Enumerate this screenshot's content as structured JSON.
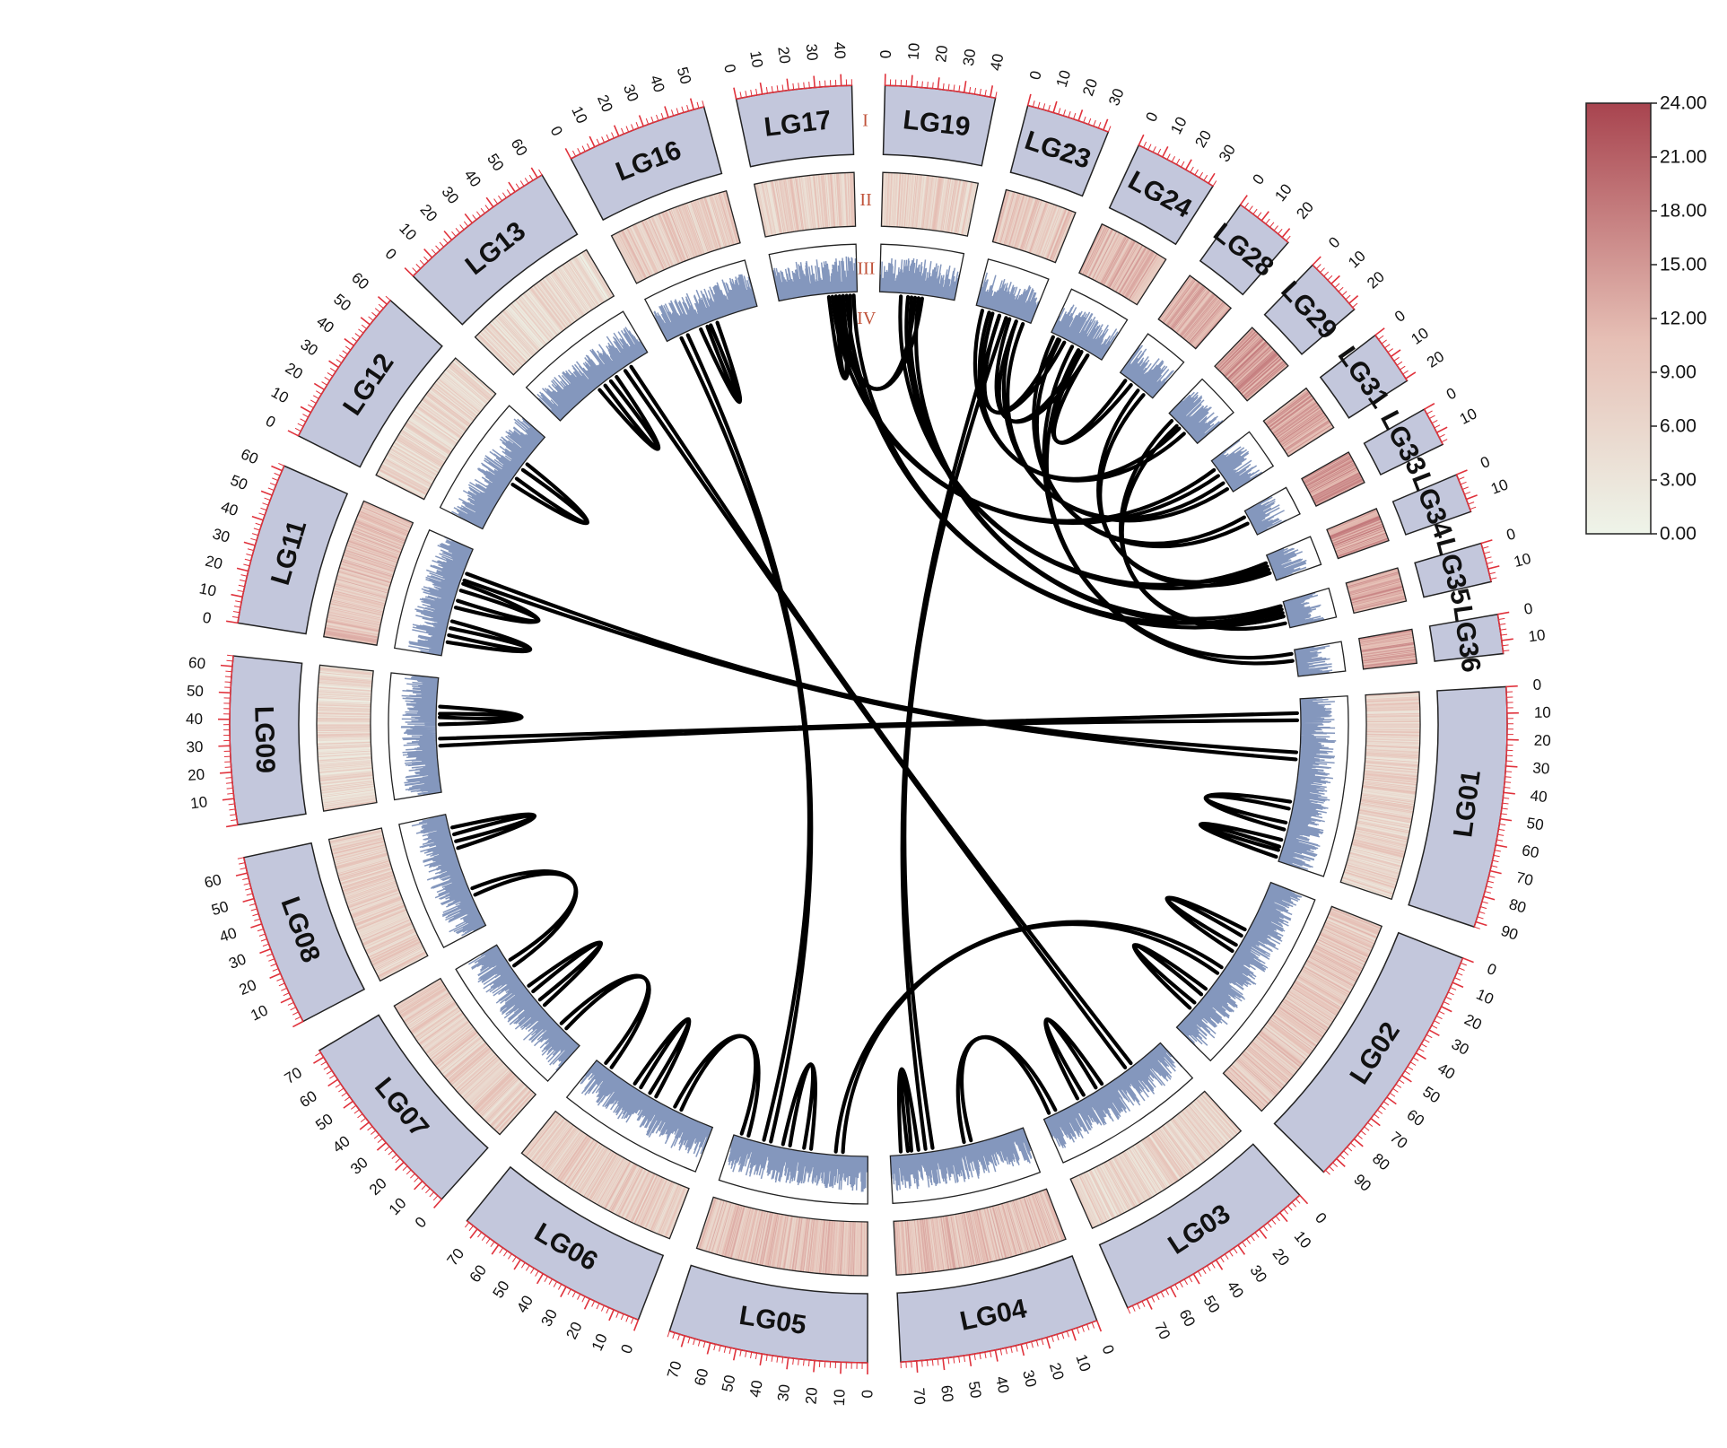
{
  "chart_data": {
    "type": "circos",
    "track_labels": [
      "I",
      "II",
      "III",
      "IV"
    ],
    "track_label_color": "#c0533a",
    "ideogram_color": "#c3c7dc",
    "tick_color": "#e0323c",
    "bar_color": "#8497bd",
    "chromosomes": [
      {
        "name": "LG01",
        "length": 92,
        "ticks": [
          0,
          10,
          20,
          30,
          40,
          50,
          60,
          70,
          80,
          90
        ],
        "mean_heat": 0.28
      },
      {
        "name": "LG02",
        "length": 97,
        "ticks": [
          0,
          10,
          20,
          30,
          40,
          50,
          60,
          70,
          80,
          90
        ],
        "mean_heat": 0.35
      },
      {
        "name": "LG03",
        "length": 78,
        "ticks": [
          0,
          10,
          20,
          30,
          40,
          50,
          60,
          70
        ],
        "mean_heat": 0.25
      },
      {
        "name": "LG04",
        "length": 76,
        "ticks": [
          0,
          10,
          20,
          30,
          40,
          50,
          60,
          70
        ],
        "mean_heat": 0.4
      },
      {
        "name": "LG05",
        "length": 76,
        "ticks": [
          0,
          10,
          20,
          30,
          40,
          50,
          60,
          70
        ],
        "mean_heat": 0.4
      },
      {
        "name": "LG06",
        "length": 75,
        "ticks": [
          0,
          10,
          20,
          30,
          40,
          50,
          60,
          70
        ],
        "mean_heat": 0.32
      },
      {
        "name": "LG07",
        "length": 73,
        "ticks": [
          0,
          10,
          20,
          30,
          40,
          50,
          60,
          70
        ],
        "mean_heat": 0.3
      },
      {
        "name": "LG08",
        "length": 66,
        "ticks": [
          10,
          20,
          30,
          40,
          50,
          60
        ],
        "mean_heat": 0.3
      },
      {
        "name": "LG09",
        "length": 64,
        "ticks": [
          10,
          20,
          30,
          40,
          50,
          60
        ],
        "mean_heat": 0.22
      },
      {
        "name": "LG11",
        "length": 62,
        "ticks": [
          0,
          10,
          20,
          30,
          40,
          50,
          60
        ],
        "mean_heat": 0.38
      },
      {
        "name": "LG12",
        "length": 62,
        "ticks": [
          0,
          10,
          20,
          30,
          40,
          50,
          60
        ],
        "mean_heat": 0.25
      },
      {
        "name": "LG13",
        "length": 62,
        "ticks": [
          0,
          10,
          20,
          30,
          40,
          50,
          60
        ],
        "mean_heat": 0.2
      },
      {
        "name": "LG16",
        "length": 54,
        "ticks": [
          0,
          10,
          20,
          30,
          40,
          50
        ],
        "mean_heat": 0.32
      },
      {
        "name": "LG17",
        "length": 44,
        "ticks": [
          0,
          10,
          20,
          30,
          40
        ],
        "mean_heat": 0.3
      },
      {
        "name": "LG19",
        "length": 42,
        "ticks": [
          0,
          10,
          20,
          30,
          40
        ],
        "mean_heat": 0.3
      },
      {
        "name": "LG23",
        "length": 32,
        "ticks": [
          0,
          10,
          20,
          30
        ],
        "mean_heat": 0.35
      },
      {
        "name": "LG24",
        "length": 32,
        "ticks": [
          0,
          10,
          20,
          30
        ],
        "mean_heat": 0.45
      },
      {
        "name": "LG28",
        "length": 23,
        "ticks": [
          0,
          10,
          20
        ],
        "mean_heat": 0.5
      },
      {
        "name": "LG29",
        "length": 23,
        "ticks": [
          0,
          10,
          20
        ],
        "mean_heat": 0.6
      },
      {
        "name": "LG31",
        "length": 21,
        "ticks": [
          0,
          10,
          20
        ],
        "mean_heat": 0.55
      },
      {
        "name": "LG33",
        "length": 15,
        "ticks": [
          0,
          10
        ],
        "mean_heat": 0.6
      },
      {
        "name": "LG34",
        "length": 15,
        "ticks": [
          0,
          10
        ],
        "mean_heat": 0.6
      },
      {
        "name": "LG35",
        "length": 15,
        "ticks": [
          0,
          10
        ],
        "mean_heat": 0.55
      },
      {
        "name": "LG36",
        "length": 15,
        "ticks": [
          0,
          10
        ],
        "mean_heat": 0.55
      }
    ],
    "links": [
      {
        "a": [
          "LG17",
          32,
          36
        ],
        "b": [
          "LG19",
          20,
          24
        ]
      },
      {
        "a": [
          "LG17",
          28,
          32
        ],
        "b": [
          "LG17",
          36,
          40
        ]
      },
      {
        "a": [
          "LG17",
          38,
          42
        ],
        "b": [
          "LG35",
          4,
          8
        ]
      },
      {
        "a": [
          "LG17",
          30,
          34
        ],
        "b": [
          "LG31",
          5,
          9
        ]
      },
      {
        "a": [
          "LG19",
          18,
          22
        ],
        "b": [
          "LG35",
          2,
          6
        ]
      },
      {
        "a": [
          "LG19",
          12,
          16
        ],
        "b": [
          "LG34",
          4,
          8
        ]
      },
      {
        "a": [
          "LG23",
          10,
          14
        ],
        "b": [
          "LG24",
          5,
          9
        ]
      },
      {
        "a": [
          "LG23",
          4,
          8
        ],
        "b": [
          "LG29",
          10,
          14
        ]
      },
      {
        "a": [
          "LG24",
          20,
          24
        ],
        "b": [
          "LG28",
          5,
          9
        ]
      },
      {
        "a": [
          "LG23",
          20,
          24
        ],
        "b": [
          "LG24",
          20,
          24
        ]
      },
      {
        "a": [
          "LG24",
          2,
          6
        ],
        "b": [
          "LG33",
          3,
          7
        ]
      },
      {
        "a": [
          "LG24",
          14,
          18
        ],
        "b": [
          "LG36",
          2,
          6
        ]
      },
      {
        "a": [
          "LG23",
          24,
          28
        ],
        "b": [
          "LG31",
          14,
          18
        ]
      },
      {
        "a": [
          "LG28",
          14,
          18
        ],
        "b": [
          "LG34",
          6,
          10
        ]
      },
      {
        "a": [
          "LG29",
          4,
          8
        ],
        "b": [
          "LG35",
          8,
          12
        ]
      },
      {
        "a": [
          "LG16",
          20,
          24
        ],
        "b": [
          "LG16",
          26,
          30
        ]
      },
      {
        "a": [
          "LG16",
          8,
          12
        ],
        "b": [
          "LG05",
          55,
          59
        ]
      },
      {
        "a": [
          "LG13",
          28,
          32
        ],
        "b": [
          "LG13",
          36,
          40
        ]
      },
      {
        "a": [
          "LG11",
          44,
          48
        ],
        "b": [
          "LG01",
          30,
          34
        ]
      },
      {
        "a": [
          "LG11",
          28,
          32
        ],
        "b": [
          "LG11",
          38,
          42
        ]
      },
      {
        "a": [
          "LG11",
          8,
          12
        ],
        "b": [
          "LG11",
          16,
          20
        ]
      },
      {
        "a": [
          "LG09",
          38,
          42
        ],
        "b": [
          "LG09",
          44,
          48
        ]
      },
      {
        "a": [
          "LG09",
          26,
          30
        ],
        "b": [
          "LG01",
          8,
          12
        ]
      },
      {
        "a": [
          "LG08",
          46,
          50
        ],
        "b": [
          "LG08",
          54,
          58
        ]
      },
      {
        "a": [
          "LG08",
          18,
          22
        ],
        "b": [
          "LG07",
          58,
          62
        ]
      },
      {
        "a": [
          "LG07",
          30,
          34
        ],
        "b": [
          "LG07",
          40,
          44
        ]
      },
      {
        "a": [
          "LG07",
          12,
          16
        ],
        "b": [
          "LG06",
          66,
          70
        ]
      },
      {
        "a": [
          "LG06",
          36,
          40
        ],
        "b": [
          "LG06",
          46,
          50
        ]
      },
      {
        "a": [
          "LG06",
          20,
          24
        ],
        "b": [
          "LG05",
          68,
          72
        ]
      },
      {
        "a": [
          "LG05",
          32,
          36
        ],
        "b": [
          "LG05",
          44,
          48
        ]
      },
      {
        "a": [
          "LG05",
          14,
          18
        ],
        "b": [
          "LG02",
          55,
          59
        ]
      },
      {
        "a": [
          "LG04",
          60,
          64
        ],
        "b": [
          "LG04",
          66,
          70
        ]
      },
      {
        "a": [
          "LG04",
          52,
          56
        ],
        "b": [
          "LG23",
          14,
          18
        ]
      },
      {
        "a": [
          "LG04",
          30,
          34
        ],
        "b": [
          "LG03",
          70,
          74
        ]
      },
      {
        "a": [
          "LG03",
          40,
          44
        ],
        "b": [
          "LG03",
          52,
          56
        ]
      },
      {
        "a": [
          "LG02",
          70,
          74
        ],
        "b": [
          "LG02",
          80,
          84
        ]
      },
      {
        "a": [
          "LG02",
          30,
          34
        ],
        "b": [
          "LG02",
          40,
          44
        ]
      },
      {
        "a": [
          "LG01",
          58,
          62
        ],
        "b": [
          "LG01",
          70,
          74
        ]
      },
      {
        "a": [
          "LG01",
          80,
          84
        ],
        "b": [
          "LG01",
          86,
          90
        ]
      },
      {
        "a": [
          "LG13",
          46,
          50
        ],
        "b": [
          "LG03",
          20,
          24
        ]
      },
      {
        "a": [
          "LG12",
          30,
          34
        ],
        "b": [
          "LG12",
          40,
          44
        ]
      }
    ],
    "legend": {
      "ticks": [
        "24.00",
        "21.00",
        "18.00",
        "15.00",
        "12.00",
        "9.00",
        "6.00",
        "3.00",
        "0.00"
      ],
      "color_low": "#eef4e9",
      "color_mid": "#e6bfb5",
      "color_high": "#a8444f",
      "range": [
        0,
        24
      ]
    }
  }
}
